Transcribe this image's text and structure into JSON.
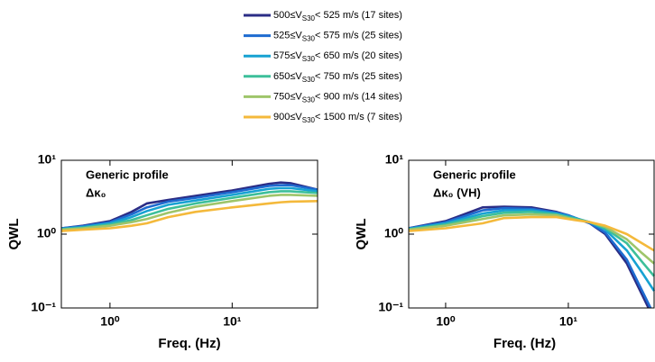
{
  "chart_data": [
    {
      "type": "line",
      "xscale": "log",
      "yscale": "log",
      "xlabel": "Freq. (Hz)",
      "ylabel": "QWL",
      "annotations": [
        "Generic profile",
        "Δκ₀"
      ],
      "xlim": [
        0.4,
        50
      ],
      "ylim": [
        0.1,
        10
      ],
      "xticks": [
        {
          "value": 1,
          "label": "10⁰"
        },
        {
          "value": 10,
          "label": "10¹"
        }
      ],
      "yticks": [
        {
          "value": 0.1,
          "label": "10⁻¹"
        },
        {
          "value": 1,
          "label": "10⁰"
        },
        {
          "value": 10,
          "label": "10¹"
        }
      ],
      "x": [
        0.4,
        0.6,
        1,
        1.5,
        2,
        3,
        5,
        10,
        20,
        25,
        30,
        50
      ],
      "series": [
        {
          "name": "500≤VS30< 525 m/s (17 sites)",
          "color": "#2b2d86",
          "values": [
            1.2,
            1.3,
            1.5,
            2.0,
            2.6,
            2.9,
            3.3,
            3.9,
            4.8,
            5.0,
            4.9,
            4.0
          ]
        },
        {
          "name": "525≤VS30< 575 m/s (25 sites)",
          "color": "#1e6bd0",
          "values": [
            1.2,
            1.28,
            1.45,
            1.85,
            2.3,
            2.75,
            3.1,
            3.7,
            4.5,
            4.6,
            4.6,
            4.0
          ]
        },
        {
          "name": "575≤VS30< 650 m/s (20 sites)",
          "color": "#17a2d2",
          "values": [
            1.18,
            1.25,
            1.4,
            1.7,
            2.05,
            2.5,
            2.85,
            3.4,
            4.1,
            4.2,
            4.2,
            3.8
          ]
        },
        {
          "name": "650≤VS30< 750 m/s (25 sites)",
          "color": "#3dbf9a",
          "values": [
            1.16,
            1.22,
            1.35,
            1.55,
            1.8,
            2.2,
            2.6,
            3.1,
            3.7,
            3.8,
            3.8,
            3.6
          ]
        },
        {
          "name": "750≤VS30< 900 m/s (14 sites)",
          "color": "#9ec56a",
          "values": [
            1.15,
            1.2,
            1.3,
            1.45,
            1.6,
            1.95,
            2.35,
            2.8,
            3.3,
            3.4,
            3.4,
            3.3
          ]
        },
        {
          "name": "900≤VS30< 1500 m/s (7 sites)",
          "color": "#f4b93b",
          "values": [
            1.1,
            1.15,
            1.2,
            1.3,
            1.4,
            1.7,
            2.0,
            2.3,
            2.6,
            2.7,
            2.75,
            2.8
          ]
        }
      ]
    },
    {
      "type": "line",
      "xscale": "log",
      "yscale": "log",
      "xlabel": "Freq. (Hz)",
      "ylabel": "QWL",
      "annotations": [
        "Generic profile",
        "Δκ₀ (VH)"
      ],
      "xlim": [
        0.5,
        50
      ],
      "ylim": [
        0.1,
        10
      ],
      "xticks": [
        {
          "value": 1,
          "label": "10⁰"
        },
        {
          "value": 10,
          "label": "10¹"
        }
      ],
      "yticks": [
        {
          "value": 0.1,
          "label": "10⁻¹"
        },
        {
          "value": 1,
          "label": "10⁰"
        },
        {
          "value": 10,
          "label": "10¹"
        }
      ],
      "x": [
        0.5,
        1,
        2,
        3,
        5,
        8,
        10,
        15,
        20,
        30,
        40,
        50
      ],
      "series": [
        {
          "color": "#2b2d86",
          "values": [
            1.2,
            1.5,
            2.3,
            2.35,
            2.3,
            2.0,
            1.8,
            1.4,
            1.0,
            0.4,
            0.15,
            0.07
          ]
        },
        {
          "color": "#1e6bd0",
          "values": [
            1.2,
            1.45,
            2.1,
            2.25,
            2.2,
            1.95,
            1.8,
            1.4,
            1.05,
            0.45,
            0.17,
            0.08
          ]
        },
        {
          "color": "#17a2d2",
          "values": [
            1.18,
            1.4,
            1.9,
            2.1,
            2.1,
            1.9,
            1.75,
            1.45,
            1.15,
            0.6,
            0.3,
            0.17
          ]
        },
        {
          "color": "#3dbf9a",
          "values": [
            1.16,
            1.35,
            1.75,
            1.95,
            2.0,
            1.85,
            1.7,
            1.45,
            1.2,
            0.75,
            0.42,
            0.27
          ]
        },
        {
          "color": "#9ec56a",
          "values": [
            1.15,
            1.3,
            1.6,
            1.8,
            1.85,
            1.8,
            1.65,
            1.45,
            1.25,
            0.85,
            0.55,
            0.4
          ]
        },
        {
          "color": "#f4b93b",
          "values": [
            1.1,
            1.2,
            1.4,
            1.65,
            1.7,
            1.7,
            1.6,
            1.45,
            1.3,
            1.0,
            0.75,
            0.6
          ]
        }
      ]
    }
  ]
}
